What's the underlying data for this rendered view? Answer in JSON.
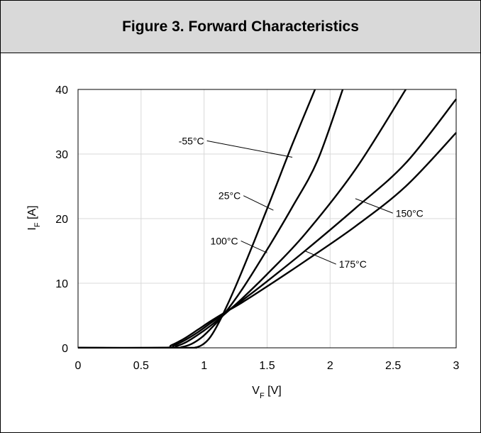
{
  "chart_data": {
    "type": "line",
    "title": "Figure 3. Forward Characteristics",
    "xlabel": {
      "main": "V",
      "sub": "F",
      "unit": " [V]"
    },
    "ylabel": {
      "main": "I",
      "sub": "F",
      "unit": " [A]"
    },
    "xlim": [
      0,
      3
    ],
    "ylim": [
      0,
      40
    ],
    "xticks": [
      0,
      0.5,
      1,
      1.5,
      2,
      2.5,
      3
    ],
    "xtick_labels": [
      "0",
      "0.5",
      "1",
      "1.5",
      "2",
      "2.5",
      "3"
    ],
    "yticks": [
      0,
      10,
      20,
      30,
      40
    ],
    "ytick_labels": [
      "0",
      "10",
      "20",
      "30",
      "40"
    ],
    "grid": true,
    "series": [
      {
        "name": "-55°C",
        "x": [
          0,
          0.85,
          0.93,
          0.98,
          1.03,
          1.08,
          1.15,
          1.25,
          1.4,
          1.55,
          1.7,
          1.88
        ],
        "y": [
          0,
          0,
          0.05,
          0.4,
          1.2,
          2.6,
          5.2,
          9.5,
          16.6,
          24.0,
          31.5,
          40.0
        ]
      },
      {
        "name": "25°C",
        "x": [
          0,
          0.75,
          0.82,
          0.9,
          0.98,
          1.05,
          1.15,
          1.3,
          1.5,
          1.7,
          1.9,
          2.1
        ],
        "y": [
          0,
          0,
          0.1,
          0.6,
          1.6,
          2.9,
          5.0,
          9.0,
          15.2,
          21.8,
          29.0,
          40.0
        ]
      },
      {
        "name": "100°C",
        "x": [
          0,
          0.7,
          0.78,
          0.86,
          0.95,
          1.05,
          1.15,
          1.3,
          1.5,
          1.8,
          2.2,
          2.6
        ],
        "y": [
          0,
          0,
          0.25,
          0.9,
          2.0,
          3.4,
          5.0,
          7.6,
          11.4,
          17.6,
          27.6,
          40.0
        ]
      },
      {
        "name": "150°C",
        "x": [
          0,
          0.68,
          0.76,
          0.85,
          0.95,
          1.05,
          1.15,
          1.3,
          1.5,
          1.8,
          2.2,
          2.6,
          3.0
        ],
        "y": [
          0,
          0,
          0.35,
          1.2,
          2.4,
          3.8,
          5.2,
          7.3,
          10.3,
          15.0,
          21.6,
          28.6,
          38.5
        ]
      },
      {
        "name": "175°C",
        "x": [
          0,
          0.66,
          0.74,
          0.84,
          0.95,
          1.05,
          1.15,
          1.3,
          1.5,
          1.8,
          2.2,
          2.6,
          3.0
        ],
        "y": [
          0,
          0,
          0.4,
          1.4,
          2.8,
          4.1,
          5.3,
          7.0,
          9.5,
          13.4,
          18.8,
          25.0,
          33.3
        ]
      }
    ],
    "annotations": [
      {
        "text": "-55°C",
        "label_x": 1.0,
        "label_y": 31.5,
        "anchor": "end",
        "lead_to": [
          1.7,
          29.5
        ]
      },
      {
        "text": "25°C",
        "label_x": 1.29,
        "label_y": 23.0,
        "anchor": "end",
        "lead_to": [
          1.55,
          21.3
        ]
      },
      {
        "text": "100°C",
        "label_x": 1.27,
        "label_y": 16.0,
        "anchor": "end",
        "lead_to": [
          1.5,
          14.7
        ]
      },
      {
        "text": "150°C",
        "label_x": 2.52,
        "label_y": 20.3,
        "anchor": "start",
        "lead_to": [
          2.2,
          23.1
        ]
      },
      {
        "text": "175°C",
        "label_x": 2.07,
        "label_y": 12.4,
        "anchor": "start",
        "lead_to": [
          1.8,
          15.0
        ]
      }
    ]
  }
}
